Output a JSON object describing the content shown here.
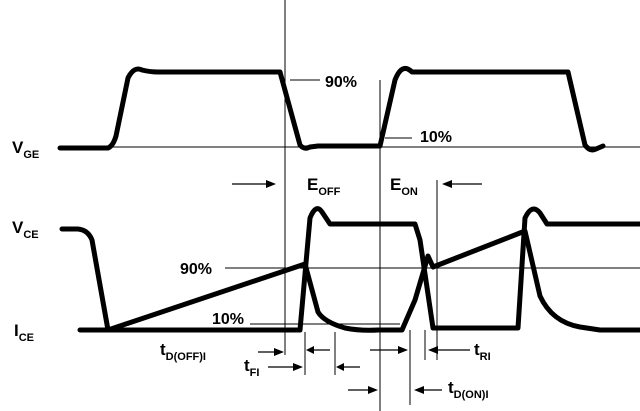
{
  "labels": {
    "vge_main": "V",
    "vge_sub": "GE",
    "vce_main": "V",
    "vce_sub": "CE",
    "ice_main": "I",
    "ice_sub": "CE",
    "pct90_top": "90%",
    "pct10_top": "10%",
    "pct90_mid": "90%",
    "pct10_bottom": "10%",
    "eoff_main": "E",
    "eoff_sub": "OFF",
    "eon_main": "E",
    "eon_sub": "ON",
    "tdoffi_main": "t",
    "tdoffi_sub": "D(OFF)I",
    "tfi_main": "t",
    "tfi_sub": "FI",
    "tri_main": "t",
    "tri_sub": "RI",
    "tdoni_main": "t",
    "tdoni_sub": "D(ON)I"
  }
}
